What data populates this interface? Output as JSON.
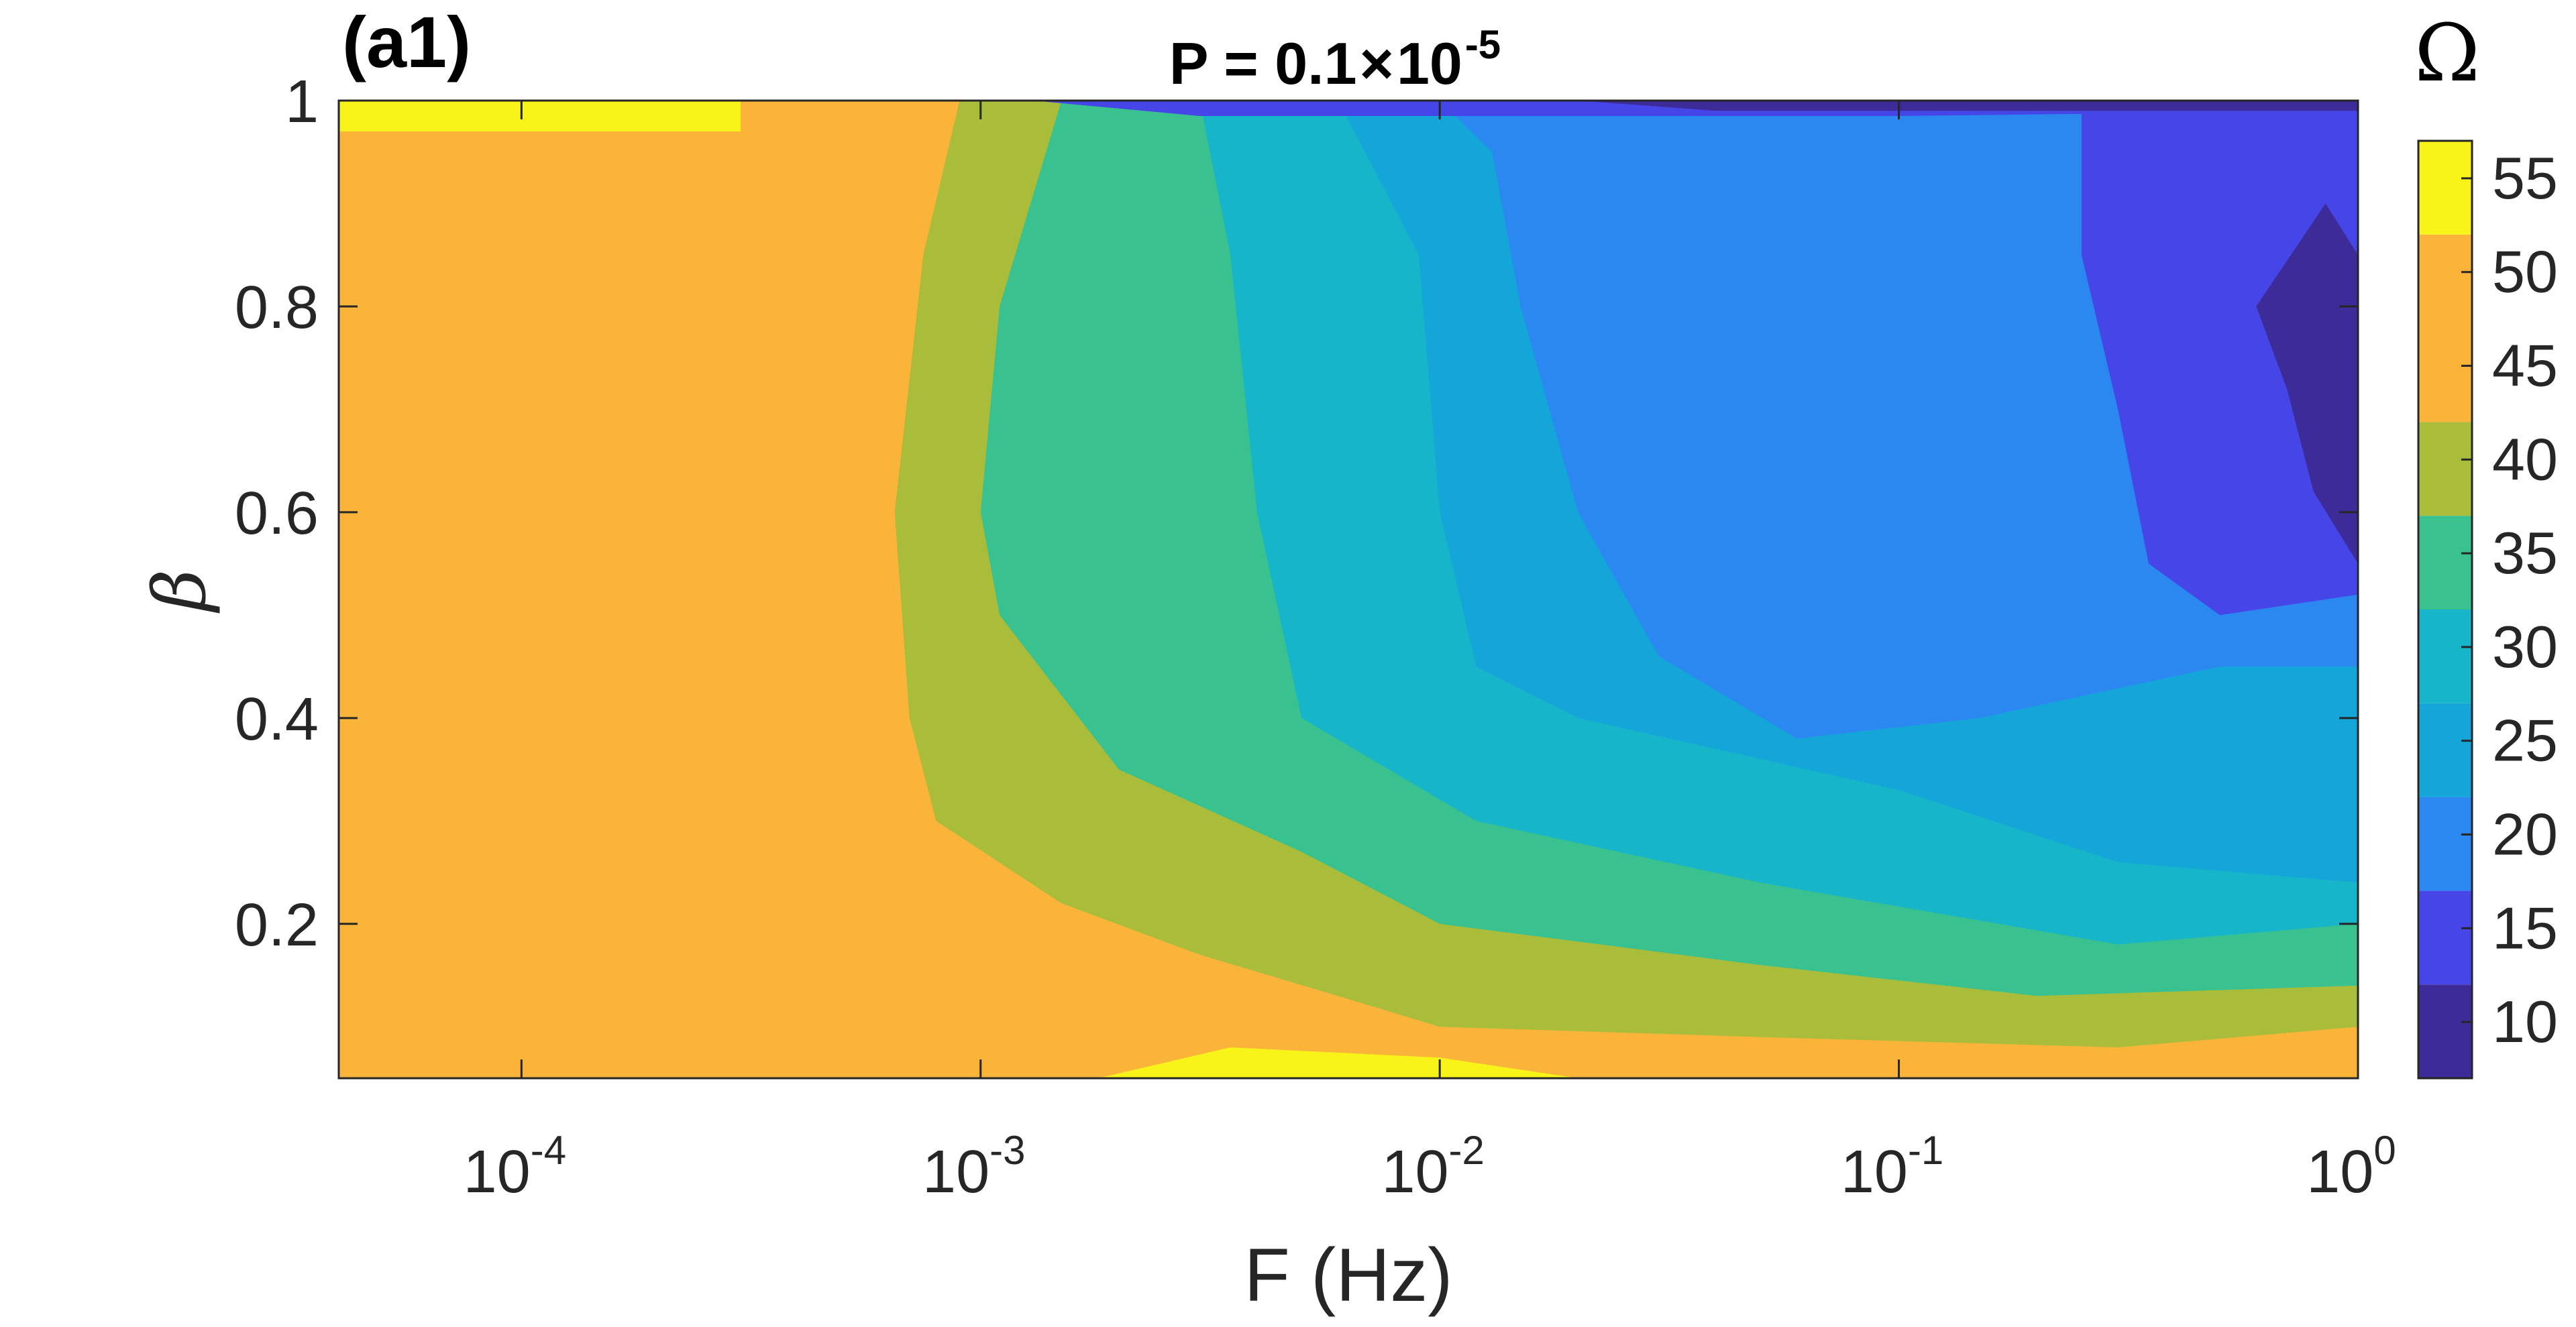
{
  "chart_data": {
    "type": "heatmap",
    "panel_label": "(a1)",
    "title_prefix": "P = 0.1",
    "title_times": "×",
    "title_base": "10",
    "title_exp": "-5",
    "xlabel": "F (Hz)",
    "ylabel": "β",
    "x_scale": "log",
    "xlim": [
      4e-05,
      1
    ],
    "ylim": [
      0.05,
      1
    ],
    "x_ticks": [
      {
        "value": 0.0001,
        "base": "10",
        "exp": "-4"
      },
      {
        "value": 0.001,
        "base": "10",
        "exp": "-3"
      },
      {
        "value": 0.01,
        "base": "10",
        "exp": "-2"
      },
      {
        "value": 0.1,
        "base": "10",
        "exp": "-1"
      },
      {
        "value": 1,
        "base": "10",
        "exp": "0"
      }
    ],
    "y_ticks": [
      {
        "value": 0.2,
        "label": "0.2"
      },
      {
        "value": 0.4,
        "label": "0.4"
      },
      {
        "value": 0.6,
        "label": "0.6"
      },
      {
        "value": 0.8,
        "label": "0.8"
      },
      {
        "value": 1.0,
        "label": "1"
      }
    ],
    "colorbar": {
      "label": "Ω",
      "range": [
        7,
        57
      ],
      "levels": [
        {
          "min": 7,
          "max": 12,
          "color": "#3d2b9a"
        },
        {
          "min": 12,
          "max": 17,
          "color": "#4646e8"
        },
        {
          "min": 17,
          "max": 22,
          "color": "#2b88f0"
        },
        {
          "min": 22,
          "max": 27,
          "color": "#14a6d8"
        },
        {
          "min": 27,
          "max": 32,
          "color": "#17b5c9"
        },
        {
          "min": 32,
          "max": 37,
          "color": "#39c28f"
        },
        {
          "min": 37,
          "max": 42,
          "color": "#a9bd3a"
        },
        {
          "min": 42,
          "max": 52,
          "color": "#fbb43a"
        },
        {
          "min": 52,
          "max": 57,
          "color": "#f8f318"
        }
      ],
      "ticks": [
        {
          "value": 10,
          "label": "10"
        },
        {
          "value": 15,
          "label": "15"
        },
        {
          "value": 20,
          "label": "20"
        },
        {
          "value": 25,
          "label": "25"
        },
        {
          "value": 30,
          "label": "30"
        },
        {
          "value": 35,
          "label": "35"
        },
        {
          "value": 40,
          "label": "40"
        },
        {
          "value": 45,
          "label": "45"
        },
        {
          "value": 50,
          "label": "50"
        },
        {
          "value": 55,
          "label": "55"
        }
      ]
    },
    "contour_regions": [
      {
        "name": "omega-45-55",
        "color": "#fbb43a",
        "points": [
          [
            4e-05,
            0.05
          ],
          [
            0.0018,
            0.05
          ],
          [
            0.0035,
            0.08
          ],
          [
            0.01,
            0.07
          ],
          [
            0.02,
            0.05
          ],
          [
            1,
            0.05
          ],
          [
            1,
            1
          ],
          [
            0.0003,
            1
          ],
          [
            0.0003,
            0.97
          ],
          [
            4e-05,
            0.97
          ]
        ]
      },
      {
        "name": "omega-40",
        "color": "#a9bd3a",
        "points": [
          [
            0.0009,
            1
          ],
          [
            0.00075,
            0.85
          ],
          [
            0.00065,
            0.6
          ],
          [
            0.0007,
            0.4
          ],
          [
            0.0008,
            0.3
          ],
          [
            0.0015,
            0.22
          ],
          [
            0.003,
            0.17
          ],
          [
            0.006,
            0.13
          ],
          [
            0.01,
            0.1
          ],
          [
            0.05,
            0.09
          ],
          [
            0.3,
            0.08
          ],
          [
            1,
            0.1
          ],
          [
            1,
            1
          ]
        ]
      },
      {
        "name": "omega-35",
        "color": "#39c28f",
        "points": [
          [
            0.0015,
            1
          ],
          [
            0.0011,
            0.8
          ],
          [
            0.001,
            0.6
          ],
          [
            0.0011,
            0.5
          ],
          [
            0.002,
            0.35
          ],
          [
            0.005,
            0.27
          ],
          [
            0.01,
            0.2
          ],
          [
            0.05,
            0.16
          ],
          [
            0.2,
            0.13
          ],
          [
            1,
            0.14
          ],
          [
            1,
            1
          ]
        ]
      },
      {
        "name": "omega-30",
        "color": "#17b5c9",
        "points": [
          [
            0.003,
            1
          ],
          [
            0.0035,
            0.85
          ],
          [
            0.004,
            0.6
          ],
          [
            0.005,
            0.4
          ],
          [
            0.012,
            0.3
          ],
          [
            0.05,
            0.24
          ],
          [
            0.3,
            0.18
          ],
          [
            1,
            0.2
          ],
          [
            1,
            1
          ]
        ]
      },
      {
        "name": "omega-25",
        "color": "#14a6d8",
        "points": [
          [
            0.006,
            1
          ],
          [
            0.009,
            0.85
          ],
          [
            0.01,
            0.6
          ],
          [
            0.012,
            0.45
          ],
          [
            0.02,
            0.4
          ],
          [
            0.1,
            0.33
          ],
          [
            0.3,
            0.26
          ],
          [
            1,
            0.24
          ],
          [
            1,
            1
          ]
        ]
      },
      {
        "name": "omega-20",
        "color": "#2b88f0",
        "points": [
          [
            0.01,
            1
          ],
          [
            0.013,
            0.95
          ],
          [
            0.015,
            0.8
          ],
          [
            0.02,
            0.6
          ],
          [
            0.03,
            0.46
          ],
          [
            0.06,
            0.38
          ],
          [
            0.15,
            0.4
          ],
          [
            0.5,
            0.45
          ],
          [
            1,
            0.45
          ],
          [
            1,
            1
          ]
        ]
      },
      {
        "name": "omega-15",
        "color": "#4646e8",
        "points": [
          [
            0.25,
            1
          ],
          [
            0.25,
            0.85
          ],
          [
            0.3,
            0.7
          ],
          [
            0.35,
            0.55
          ],
          [
            0.5,
            0.5
          ],
          [
            1,
            0.52
          ],
          [
            1,
            1
          ]
        ]
      },
      {
        "name": "omega-15-top",
        "color": "#4646e8",
        "points": [
          [
            0.0013,
            1
          ],
          [
            0.003,
            0.985
          ],
          [
            0.1,
            0.985
          ],
          [
            1,
            0.99
          ],
          [
            1,
            1
          ]
        ]
      },
      {
        "name": "omega-10-top",
        "color": "#3d2b9a",
        "points": [
          [
            0.02,
            1
          ],
          [
            0.04,
            0.99
          ],
          [
            1,
            0.99
          ],
          [
            1,
            1
          ]
        ]
      },
      {
        "name": "omega-10-right",
        "color": "#3d2b9a",
        "points": [
          [
            0.6,
            0.8
          ],
          [
            0.7,
            0.72
          ],
          [
            0.8,
            0.62
          ],
          [
            1,
            0.55
          ],
          [
            1,
            0.85
          ],
          [
            0.85,
            0.9
          ]
        ]
      }
    ]
  }
}
